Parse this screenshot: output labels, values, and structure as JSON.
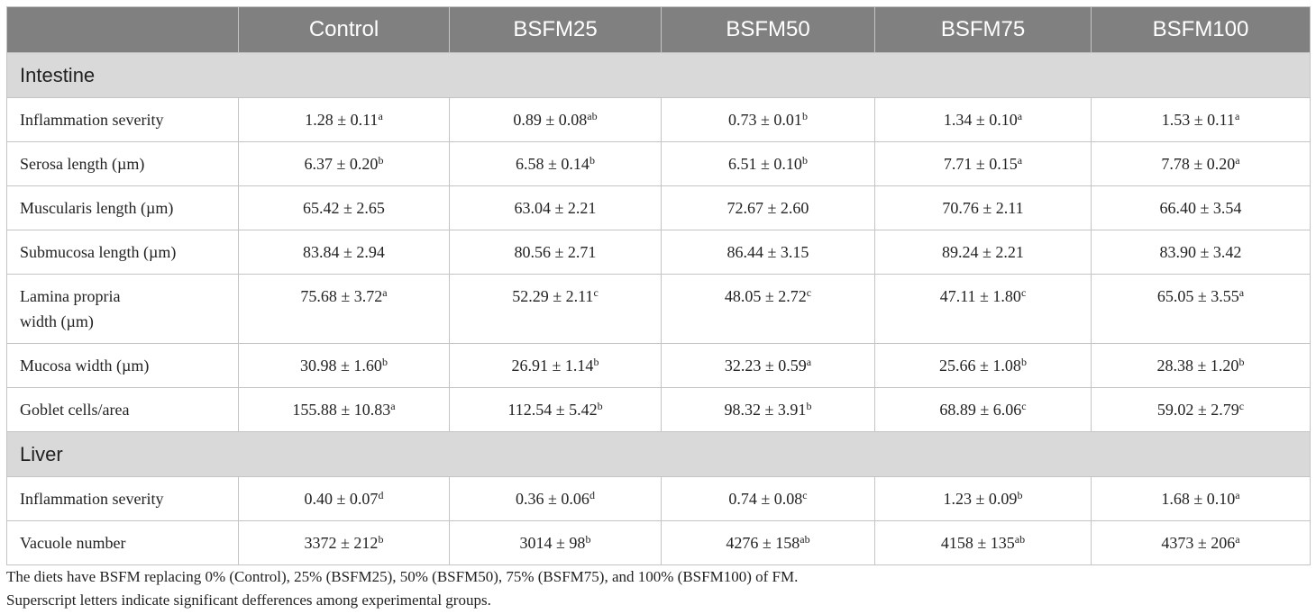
{
  "table": {
    "columns": [
      "Control",
      "BSFM25",
      "BSFM50",
      "BSFM75",
      "BSFM100"
    ],
    "sections": [
      {
        "title": "Intestine",
        "rows": [
          {
            "label": [
              "Inflammation severity"
            ],
            "cells": [
              {
                "text": "1.28 ± 0.11",
                "sup": "a"
              },
              {
                "text": "0.89 ± 0.08",
                "sup": "ab"
              },
              {
                "text": "0.73 ± 0.01",
                "sup": "b"
              },
              {
                "text": "1.34 ± 0.10",
                "sup": "a"
              },
              {
                "text": "1.53 ± 0.11",
                "sup": "a"
              }
            ]
          },
          {
            "label": [
              "Serosa length (µm)"
            ],
            "cells": [
              {
                "text": "6.37 ± 0.20",
                "sup": "b"
              },
              {
                "text": "6.58 ± 0.14",
                "sup": "b"
              },
              {
                "text": "6.51 ± 0.10",
                "sup": "b"
              },
              {
                "text": "7.71 ± 0.15",
                "sup": "a"
              },
              {
                "text": "7.78 ± 0.20",
                "sup": "a"
              }
            ]
          },
          {
            "label": [
              "Muscularis length (µm)"
            ],
            "cells": [
              {
                "text": "65.42 ± 2.65"
              },
              {
                "text": "63.04 ± 2.21"
              },
              {
                "text": "72.67 ± 2.60"
              },
              {
                "text": "70.76 ± 2.11"
              },
              {
                "text": "66.40 ± 3.54"
              }
            ]
          },
          {
            "label": [
              "Submucosa length (µm)"
            ],
            "cells": [
              {
                "text": "83.84 ± 2.94"
              },
              {
                "text": "80.56 ± 2.71"
              },
              {
                "text": "86.44 ± 3.15"
              },
              {
                "text": "89.24 ± 2.21"
              },
              {
                "text": "83.90 ± 3.42"
              }
            ]
          },
          {
            "label": [
              "Lamina propria",
              "width (µm)"
            ],
            "cells": [
              {
                "text": "75.68 ± 3.72",
                "sup": "a"
              },
              {
                "text": "52.29 ± 2.11",
                "sup": "c"
              },
              {
                "text": "48.05 ± 2.72",
                "sup": "c"
              },
              {
                "text": "47.11 ± 1.80",
                "sup": "c"
              },
              {
                "text": "65.05 ± 3.55",
                "sup": "a"
              }
            ]
          },
          {
            "label": [
              "Mucosa width (µm)"
            ],
            "cells": [
              {
                "text": "30.98 ± 1.60",
                "sup": "b"
              },
              {
                "text": "26.91 ± 1.14",
                "sup": "b"
              },
              {
                "text": "32.23 ± 0.59",
                "sup": "a"
              },
              {
                "text": "25.66 ± 1.08",
                "sup": "b"
              },
              {
                "text": "28.38 ± 1.20",
                "sup": "b"
              }
            ]
          },
          {
            "label": [
              "Goblet cells/area"
            ],
            "cells": [
              {
                "text": "155.88 ± 10.83",
                "sup": "a"
              },
              {
                "text": "112.54 ± 5.42",
                "sup": "b"
              },
              {
                "text": "98.32 ± 3.91",
                "sup": "b"
              },
              {
                "text": "68.89 ± 6.06",
                "sup": "c"
              },
              {
                "text": "59.02 ± 2.79",
                "sup": "c"
              }
            ]
          }
        ]
      },
      {
        "title": "Liver",
        "rows": [
          {
            "label": [
              "Inflammation severity"
            ],
            "cells": [
              {
                "text": "0.40 ± 0.07",
                "sup": "d"
              },
              {
                "text": "0.36 ± 0.06",
                "sup": "d"
              },
              {
                "text": "0.74 ± 0.08",
                "sup": "c"
              },
              {
                "text": "1.23 ± 0.09",
                "sup": "b"
              },
              {
                "text": "1.68 ± 0.10",
                "sup": "a"
              }
            ]
          },
          {
            "label": [
              "Vacuole number"
            ],
            "cells": [
              {
                "text": "3372 ± 212",
                "sup": "b"
              },
              {
                "text": "3014 ± 98",
                "sup": "b"
              },
              {
                "text": "4276 ± 158",
                "sup": "ab"
              },
              {
                "text": "4158 ± 135",
                "sup": "ab"
              },
              {
                "text": "4373 ± 206",
                "sup": "a"
              }
            ]
          }
        ]
      }
    ]
  },
  "footnotes": [
    "The diets have BSFM replacing 0% (Control), 25% (BSFM25), 50% (BSFM50), 75% (BSFM75), and 100% (BSFM100) of FM.",
    "Superscript letters indicate significant defferences among experimental groups."
  ]
}
